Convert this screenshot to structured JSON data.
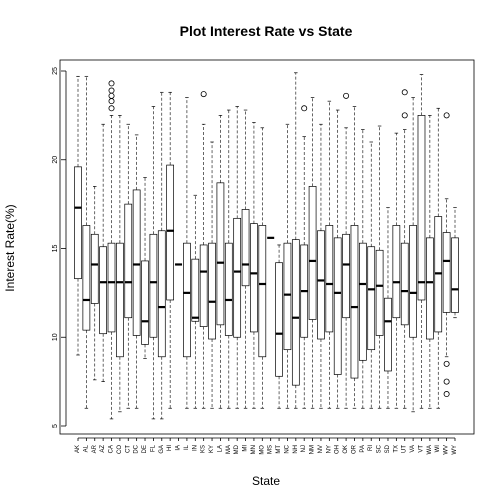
{
  "chart_data": {
    "type": "boxplot",
    "title": "Plot Interest Rate vs State",
    "xlabel": "State",
    "ylabel": "Interest Rate(%)",
    "ylim": [
      5,
      25
    ],
    "yticks": [
      5,
      10,
      15,
      20,
      25
    ],
    "grid": false,
    "categories": [
      "AK",
      "AL",
      "AR",
      "AZ",
      "CA",
      "CO",
      "CT",
      "DC",
      "DE",
      "FL",
      "GA",
      "HI",
      "IA",
      "IL",
      "IN",
      "KS",
      "KY",
      "LA",
      "MA",
      "MD",
      "MI",
      "MN",
      "MO",
      "MS",
      "MT",
      "NC",
      "NH",
      "NJ",
      "NM",
      "NV",
      "NY",
      "OH",
      "OK",
      "OR",
      "PA",
      "RI",
      "SC",
      "SD",
      "TX",
      "UT",
      "VA",
      "VT",
      "WA",
      "WI",
      "WV",
      "WY"
    ],
    "boxes": [
      {
        "min": 9.0,
        "q1": 13.3,
        "median": 17.3,
        "q3": 19.6,
        "max": 24.7,
        "outliers": []
      },
      {
        "min": 6.0,
        "q1": 10.4,
        "median": 12.1,
        "q3": 16.3,
        "max": 24.7,
        "outliers": []
      },
      {
        "min": 7.6,
        "q1": 11.9,
        "median": 14.1,
        "q3": 15.8,
        "max": 18.5,
        "outliers": []
      },
      {
        "min": 7.5,
        "q1": 10.2,
        "median": 13.1,
        "q3": 15.1,
        "max": 22.0,
        "outliers": []
      },
      {
        "min": 5.4,
        "q1": 10.3,
        "median": 13.1,
        "q3": 15.3,
        "max": 22.5,
        "outliers": [
          22.9,
          23.3,
          23.6,
          23.9,
          24.3
        ]
      },
      {
        "min": 5.8,
        "q1": 8.9,
        "median": 13.1,
        "q3": 15.3,
        "max": 22.5,
        "outliers": []
      },
      {
        "min": 6.0,
        "q1": 11.1,
        "median": 13.1,
        "q3": 17.5,
        "max": 22.0,
        "outliers": []
      },
      {
        "min": 6.0,
        "q1": 10.1,
        "median": 14.1,
        "q3": 18.3,
        "max": 21.4,
        "outliers": []
      },
      {
        "min": 8.8,
        "q1": 9.6,
        "median": 10.9,
        "q3": 14.3,
        "max": 19.0,
        "outliers": []
      },
      {
        "min": 5.4,
        "q1": 10.0,
        "median": 13.1,
        "q3": 15.8,
        "max": 23.0,
        "outliers": []
      },
      {
        "min": 5.4,
        "q1": 8.9,
        "median": 11.7,
        "q3": 16.0,
        "max": 23.8,
        "outliers": []
      },
      {
        "min": 6.0,
        "q1": 12.1,
        "median": 16.0,
        "q3": 19.7,
        "max": 23.8,
        "outliers": []
      },
      {
        "min": 14.1,
        "q1": 14.1,
        "median": 14.1,
        "q3": 14.1,
        "max": 14.1,
        "outliers": []
      },
      {
        "min": 6.0,
        "q1": 8.9,
        "median": 12.5,
        "q3": 15.3,
        "max": 23.5,
        "outliers": []
      },
      {
        "min": 6.0,
        "q1": 10.9,
        "median": 11.1,
        "q3": 14.4,
        "max": 18.0,
        "outliers": []
      },
      {
        "min": 6.0,
        "q1": 10.6,
        "median": 13.7,
        "q3": 15.2,
        "max": 22.0,
        "outliers": [
          23.7
        ]
      },
      {
        "min": 6.0,
        "q1": 9.9,
        "median": 12.0,
        "q3": 15.3,
        "max": 21.0,
        "outliers": []
      },
      {
        "min": 6.0,
        "q1": 10.7,
        "median": 14.2,
        "q3": 18.7,
        "max": 22.5,
        "outliers": []
      },
      {
        "min": 6.0,
        "q1": 10.1,
        "median": 12.1,
        "q3": 15.3,
        "max": 22.8,
        "outliers": []
      },
      {
        "min": 6.0,
        "q1": 10.0,
        "median": 13.7,
        "q3": 16.7,
        "max": 23.0,
        "outliers": []
      },
      {
        "min": 6.0,
        "q1": 12.9,
        "median": 14.1,
        "q3": 17.2,
        "max": 22.8,
        "outliers": []
      },
      {
        "min": 6.0,
        "q1": 10.3,
        "median": 13.6,
        "q3": 16.4,
        "max": 22.1,
        "outliers": []
      },
      {
        "min": 6.0,
        "q1": 8.9,
        "median": 13.0,
        "q3": 16.3,
        "max": 21.8,
        "outliers": []
      },
      {
        "min": 15.6,
        "q1": 15.6,
        "median": 15.6,
        "q3": 15.6,
        "max": 15.6,
        "outliers": []
      },
      {
        "min": 6.0,
        "q1": 7.8,
        "median": 10.2,
        "q3": 14.2,
        "max": 15.2,
        "outliers": []
      },
      {
        "min": 6.0,
        "q1": 9.3,
        "median": 12.4,
        "q3": 15.3,
        "max": 22.0,
        "outliers": []
      },
      {
        "min": 6.0,
        "q1": 7.3,
        "median": 11.1,
        "q3": 15.5,
        "max": 24.9,
        "outliers": []
      },
      {
        "min": 6.0,
        "q1": 10.0,
        "median": 12.6,
        "q3": 15.2,
        "max": 21.3,
        "outliers": [
          22.9
        ]
      },
      {
        "min": 6.0,
        "q1": 11.0,
        "median": 14.3,
        "q3": 18.5,
        "max": 23.5,
        "outliers": []
      },
      {
        "min": 6.0,
        "q1": 9.9,
        "median": 13.2,
        "q3": 16.0,
        "max": 22.0,
        "outliers": []
      },
      {
        "min": 6.0,
        "q1": 10.3,
        "median": 13.0,
        "q3": 16.3,
        "max": 23.3,
        "outliers": []
      },
      {
        "min": 6.0,
        "q1": 7.9,
        "median": 12.5,
        "q3": 15.6,
        "max": 22.8,
        "outliers": []
      },
      {
        "min": 6.0,
        "q1": 11.1,
        "median": 14.1,
        "q3": 15.8,
        "max": 21.8,
        "outliers": [
          23.6
        ]
      },
      {
        "min": 6.0,
        "q1": 7.7,
        "median": 11.7,
        "q3": 16.3,
        "max": 23.0,
        "outliers": []
      },
      {
        "min": 6.0,
        "q1": 8.7,
        "median": 13.0,
        "q3": 15.3,
        "max": 21.7,
        "outliers": []
      },
      {
        "min": 6.0,
        "q1": 9.3,
        "median": 12.7,
        "q3": 15.1,
        "max": 21.0,
        "outliers": []
      },
      {
        "min": 6.0,
        "q1": 10.1,
        "median": 12.9,
        "q3": 14.9,
        "max": 21.9,
        "outliers": []
      },
      {
        "min": 6.0,
        "q1": 8.1,
        "median": 10.9,
        "q3": 12.2,
        "max": 17.3,
        "outliers": []
      },
      {
        "min": 6.0,
        "q1": 11.1,
        "median": 13.1,
        "q3": 16.3,
        "max": 21.5,
        "outliers": []
      },
      {
        "min": 6.0,
        "q1": 10.7,
        "median": 12.6,
        "q3": 15.3,
        "max": 21.7,
        "outliers": [
          22.5,
          23.8
        ]
      },
      {
        "min": 5.8,
        "q1": 10.0,
        "median": 12.5,
        "q3": 16.3,
        "max": 23.5,
        "outliers": []
      },
      {
        "min": 6.0,
        "q1": 12.1,
        "median": 13.1,
        "q3": 22.5,
        "max": 24.8,
        "outliers": []
      },
      {
        "min": 6.0,
        "q1": 9.9,
        "median": 13.1,
        "q3": 15.6,
        "max": 22.5,
        "outliers": []
      },
      {
        "min": 6.0,
        "q1": 10.3,
        "median": 13.6,
        "q3": 16.8,
        "max": 22.9,
        "outliers": []
      },
      {
        "min": 8.9,
        "q1": 11.4,
        "median": 14.3,
        "q3": 15.9,
        "max": 17.8,
        "outliers": [
          6.8,
          7.5,
          8.5,
          22.5
        ]
      },
      {
        "min": 11.1,
        "q1": 11.4,
        "median": 12.7,
        "q3": 15.6,
        "max": 17.3,
        "outliers": []
      }
    ]
  }
}
